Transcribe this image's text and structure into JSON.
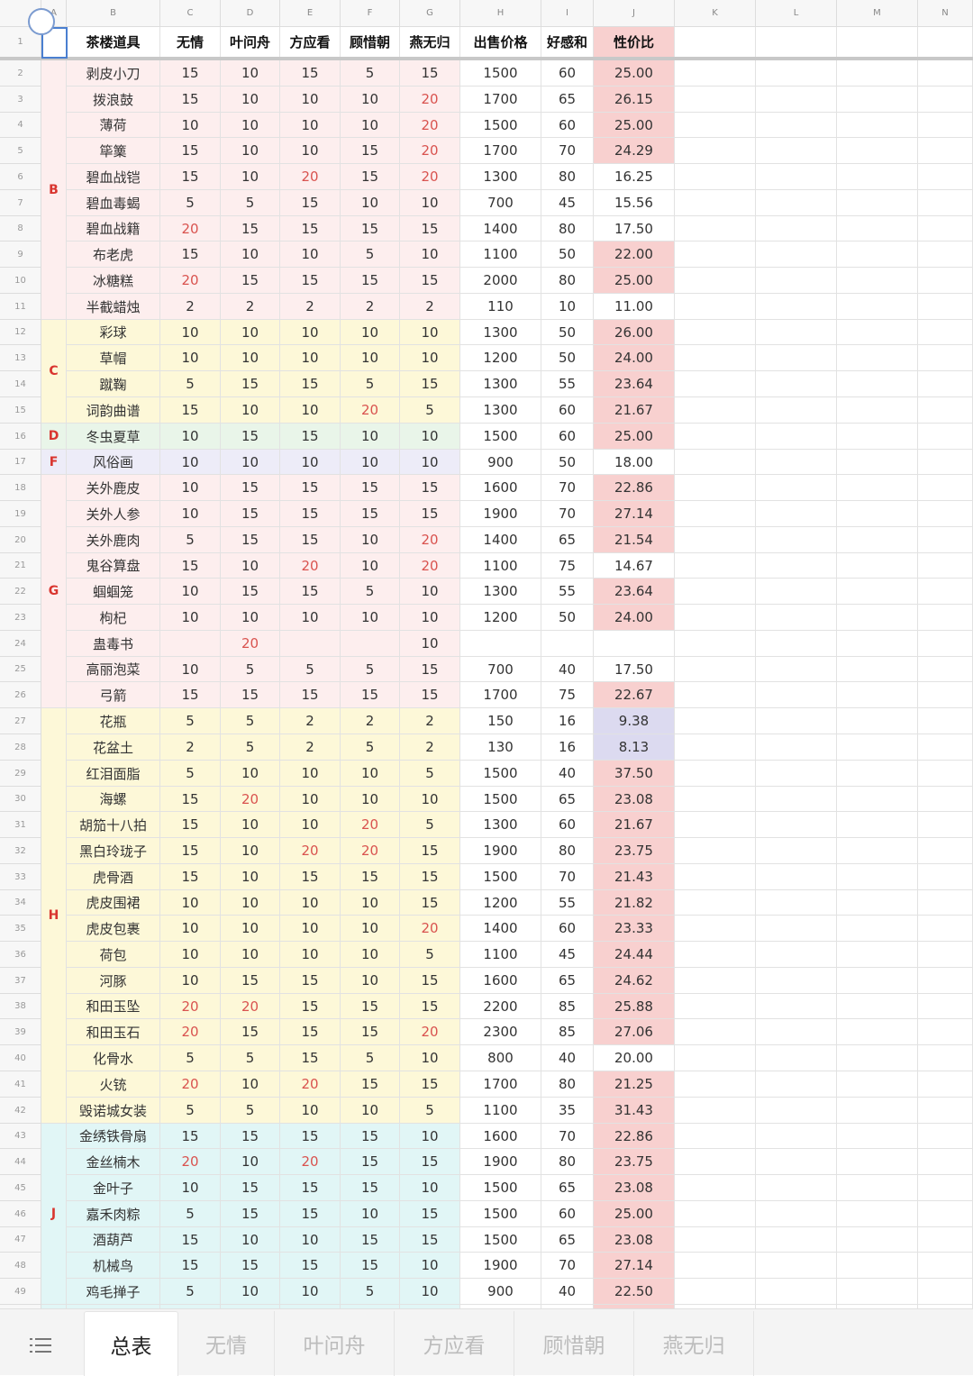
{
  "column_letters": [
    "A",
    "B",
    "C",
    "D",
    "E",
    "F",
    "G",
    "H",
    "I",
    "J",
    "K",
    "L",
    "M",
    "N"
  ],
  "header_row": [
    "",
    "茶楼道具",
    "无情",
    "叶问舟",
    "方应看",
    "顾惜朝",
    "燕无归",
    "出售价格",
    "好感和",
    "性价比"
  ],
  "colors": {
    "group_b": "#fdeeee",
    "group_c": "#fdf8d8",
    "group_d": "#e9f5e9",
    "group_f": "#edecf8",
    "group_g": "#fdeeee",
    "group_h": "#fdf8d8",
    "group_j": "#e1f6f6",
    "highlight_pink": "#f8d0cf",
    "highlight_lavender": "#dcdaf0",
    "red_text": "#d9534f"
  },
  "groups": [
    {
      "letter": "B",
      "color": "#fdeeee",
      "rows": [
        [
          "剥皮小刀",
          "15",
          "10",
          "15",
          "5",
          "15",
          "1500",
          "60",
          "25.00"
        ],
        [
          "拨浪鼓",
          "15",
          "10",
          "10",
          "10",
          "20",
          "1700",
          "65",
          "26.15"
        ],
        [
          "薄荷",
          "10",
          "10",
          "10",
          "10",
          "20",
          "1500",
          "60",
          "25.00"
        ],
        [
          "筚篥",
          "15",
          "10",
          "10",
          "15",
          "20",
          "1700",
          "70",
          "24.29"
        ],
        [
          "碧血战铠",
          "15",
          "10",
          "20",
          "15",
          "20",
          "1300",
          "80",
          "16.25"
        ],
        [
          "碧血毒蝎",
          "5",
          "5",
          "15",
          "10",
          "10",
          "700",
          "45",
          "15.56"
        ],
        [
          "碧血战籍",
          "20",
          "15",
          "15",
          "15",
          "15",
          "1400",
          "80",
          "17.50"
        ],
        [
          "布老虎",
          "15",
          "10",
          "10",
          "5",
          "10",
          "1100",
          "50",
          "22.00"
        ],
        [
          "冰糖糕",
          "20",
          "15",
          "15",
          "15",
          "15",
          "2000",
          "80",
          "25.00"
        ],
        [
          "半截蜡烛",
          "2",
          "2",
          "2",
          "2",
          "2",
          "110",
          "10",
          "11.00"
        ]
      ]
    },
    {
      "letter": "C",
      "color": "#fdf8d8",
      "rows": [
        [
          "彩球",
          "10",
          "10",
          "10",
          "10",
          "10",
          "1300",
          "50",
          "26.00"
        ],
        [
          "草帽",
          "10",
          "10",
          "10",
          "10",
          "10",
          "1200",
          "50",
          "24.00"
        ],
        [
          "蹴鞠",
          "5",
          "15",
          "15",
          "5",
          "15",
          "1300",
          "55",
          "23.64"
        ],
        [
          "词韵曲谱",
          "15",
          "10",
          "10",
          "20",
          "5",
          "1300",
          "60",
          "21.67"
        ]
      ]
    },
    {
      "letter": "D",
      "color": "#e9f5e9",
      "rows": [
        [
          "冬虫夏草",
          "10",
          "15",
          "15",
          "10",
          "10",
          "1500",
          "60",
          "25.00"
        ]
      ]
    },
    {
      "letter": "F",
      "color": "#edecf8",
      "rows": [
        [
          "风俗画",
          "10",
          "10",
          "10",
          "10",
          "10",
          "900",
          "50",
          "18.00"
        ]
      ]
    },
    {
      "letter": "G",
      "color": "#fdeeee",
      "rows": [
        [
          "关外鹿皮",
          "10",
          "15",
          "15",
          "15",
          "15",
          "1600",
          "70",
          "22.86"
        ],
        [
          "关外人参",
          "10",
          "15",
          "15",
          "15",
          "15",
          "1900",
          "70",
          "27.14"
        ],
        [
          "关外鹿肉",
          "5",
          "15",
          "15",
          "10",
          "20",
          "1400",
          "65",
          "21.54"
        ],
        [
          "鬼谷算盘",
          "15",
          "10",
          "20",
          "10",
          "20",
          "1100",
          "75",
          "14.67"
        ],
        [
          "蝈蝈笼",
          "10",
          "15",
          "15",
          "5",
          "10",
          "1300",
          "55",
          "23.64"
        ],
        [
          "枸杞",
          "10",
          "10",
          "10",
          "10",
          "10",
          "1200",
          "50",
          "24.00"
        ],
        [
          "蛊毒书",
          "",
          "20",
          "",
          "",
          "10",
          "",
          "",
          ""
        ],
        [
          "高丽泡菜",
          "10",
          "5",
          "5",
          "5",
          "15",
          "700",
          "40",
          "17.50"
        ],
        [
          "弓箭",
          "15",
          "15",
          "15",
          "15",
          "15",
          "1700",
          "75",
          "22.67"
        ]
      ]
    },
    {
      "letter": "H",
      "color": "#fdf8d8",
      "rows": [
        [
          "花瓶",
          "5",
          "5",
          "2",
          "2",
          "2",
          "150",
          "16",
          "9.38"
        ],
        [
          "花盆土",
          "2",
          "5",
          "2",
          "5",
          "2",
          "130",
          "16",
          "8.13"
        ],
        [
          "红泪面脂",
          "5",
          "10",
          "10",
          "10",
          "5",
          "1500",
          "40",
          "37.50"
        ],
        [
          "海螺",
          "15",
          "20",
          "10",
          "10",
          "10",
          "1500",
          "65",
          "23.08"
        ],
        [
          "胡笳十八拍",
          "15",
          "10",
          "10",
          "20",
          "5",
          "1300",
          "60",
          "21.67"
        ],
        [
          "黑白玲珑子",
          "15",
          "10",
          "20",
          "20",
          "15",
          "1900",
          "80",
          "23.75"
        ],
        [
          "虎骨酒",
          "15",
          "10",
          "15",
          "15",
          "15",
          "1500",
          "70",
          "21.43"
        ],
        [
          "虎皮围裙",
          "10",
          "10",
          "10",
          "10",
          "15",
          "1200",
          "55",
          "21.82"
        ],
        [
          "虎皮包裹",
          "10",
          "10",
          "10",
          "10",
          "20",
          "1400",
          "60",
          "23.33"
        ],
        [
          "荷包",
          "10",
          "10",
          "10",
          "10",
          "5",
          "1100",
          "45",
          "24.44"
        ],
        [
          "河豚",
          "10",
          "15",
          "15",
          "10",
          "15",
          "1600",
          "65",
          "24.62"
        ],
        [
          "和田玉坠",
          "20",
          "20",
          "15",
          "15",
          "15",
          "2200",
          "85",
          "25.88"
        ],
        [
          "和田玉石",
          "20",
          "15",
          "15",
          "15",
          "20",
          "2300",
          "85",
          "27.06"
        ],
        [
          "化骨水",
          "5",
          "5",
          "15",
          "5",
          "10",
          "800",
          "40",
          "20.00"
        ],
        [
          "火铳",
          "20",
          "10",
          "20",
          "15",
          "15",
          "1700",
          "80",
          "21.25"
        ],
        [
          "毁诺城女装",
          "5",
          "5",
          "10",
          "10",
          "5",
          "1100",
          "35",
          "31.43"
        ]
      ]
    },
    {
      "letter": "J",
      "color": "#e1f6f6",
      "rows": [
        [
          "金绣铁骨扇",
          "15",
          "15",
          "15",
          "15",
          "10",
          "1600",
          "70",
          "22.86"
        ],
        [
          "金丝楠木",
          "20",
          "10",
          "20",
          "15",
          "15",
          "1900",
          "80",
          "23.75"
        ],
        [
          "金叶子",
          "10",
          "15",
          "15",
          "15",
          "10",
          "1500",
          "65",
          "23.08"
        ],
        [
          "嘉禾肉粽",
          "5",
          "15",
          "15",
          "10",
          "15",
          "1500",
          "60",
          "25.00"
        ],
        [
          "酒葫芦",
          "15",
          "10",
          "10",
          "15",
          "15",
          "1500",
          "65",
          "23.08"
        ],
        [
          "机械鸟",
          "15",
          "15",
          "15",
          "15",
          "10",
          "1900",
          "70",
          "27.14"
        ],
        [
          "鸡毛掸子",
          "5",
          "10",
          "10",
          "5",
          "10",
          "900",
          "40",
          "22.50"
        ]
      ]
    }
  ],
  "sheet_tabs": [
    "总表",
    "无情",
    "叶问舟",
    "方应看",
    "顾惜朝",
    "燕无归"
  ],
  "active_tab": "总表",
  "icons": {
    "sheet_list": "list-icon"
  }
}
